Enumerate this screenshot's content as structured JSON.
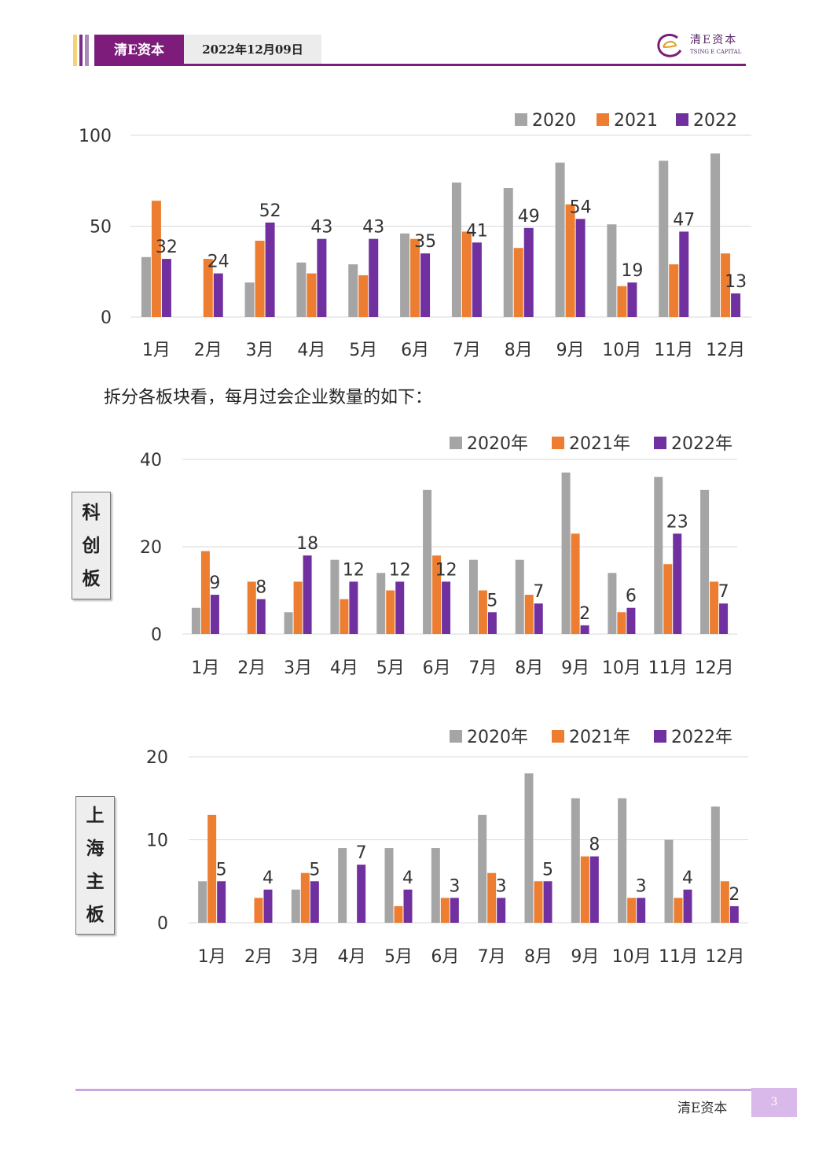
{
  "header": {
    "brand": "清E资本",
    "date": "2022年12月09日",
    "logo_cn": "清E资本",
    "logo_en": "TSING E CAPITAL"
  },
  "paragraph": "拆分各板块看，每月过会企业数量的如下：",
  "side_labels": {
    "star": [
      "科",
      "创",
      "板"
    ],
    "sh": [
      "上",
      "海",
      "主",
      "板"
    ]
  },
  "footer": {
    "brand": "清E资本",
    "page": "3"
  },
  "colors": {
    "s2020": "#a5a5a5",
    "s2021": "#ed7d31",
    "s2022": "#7030a0",
    "accent": "#7d1c7b"
  },
  "chart_data": [
    {
      "type": "bar",
      "categories": [
        "1月",
        "2月",
        "3月",
        "4月",
        "5月",
        "6月",
        "7月",
        "8月",
        "9月",
        "10月",
        "11月",
        "12月"
      ],
      "series": [
        {
          "name": "2020",
          "values": [
            33,
            0,
            19,
            30,
            29,
            46,
            74,
            71,
            85,
            51,
            86,
            90
          ]
        },
        {
          "name": "2021",
          "values": [
            64,
            32,
            42,
            24,
            23,
            43,
            47,
            38,
            62,
            17,
            29,
            35
          ]
        },
        {
          "name": "2022",
          "values": [
            32,
            24,
            52,
            43,
            43,
            35,
            41,
            49,
            54,
            19,
            47,
            13
          ]
        }
      ],
      "labeled_series": 2,
      "yticks": [
        0,
        50,
        100
      ],
      "ylim": [
        0,
        100
      ],
      "grid": true,
      "legend": "top-right"
    },
    {
      "type": "bar",
      "categories": [
        "1月",
        "2月",
        "3月",
        "4月",
        "5月",
        "6月",
        "7月",
        "8月",
        "9月",
        "10月",
        "11月",
        "12月"
      ],
      "series": [
        {
          "name": "2020年",
          "values": [
            6,
            0,
            5,
            17,
            14,
            33,
            17,
            17,
            37,
            14,
            36,
            33
          ]
        },
        {
          "name": "2021年",
          "values": [
            19,
            12,
            12,
            8,
            10,
            18,
            10,
            9,
            23,
            5,
            16,
            12
          ]
        },
        {
          "name": "2022年",
          "values": [
            9,
            8,
            18,
            12,
            12,
            12,
            5,
            7,
            2,
            6,
            23,
            7
          ]
        }
      ],
      "labeled_series": 2,
      "yticks": [
        0,
        20,
        40
      ],
      "ylim": [
        0,
        40
      ],
      "grid": true,
      "legend": "top-right"
    },
    {
      "type": "bar",
      "categories": [
        "1月",
        "2月",
        "3月",
        "4月",
        "5月",
        "6月",
        "7月",
        "8月",
        "9月",
        "10月",
        "11月",
        "12月"
      ],
      "series": [
        {
          "name": "2020年",
          "values": [
            5,
            0,
            4,
            9,
            9,
            9,
            13,
            18,
            15,
            15,
            10,
            14
          ]
        },
        {
          "name": "2021年",
          "values": [
            13,
            3,
            6,
            0,
            2,
            3,
            6,
            5,
            8,
            3,
            3,
            5
          ]
        },
        {
          "name": "2022年",
          "values": [
            5,
            4,
            5,
            7,
            4,
            3,
            3,
            5,
            8,
            3,
            4,
            2
          ]
        }
      ],
      "labeled_series": 2,
      "yticks": [
        0,
        10,
        20
      ],
      "ylim": [
        0,
        20
      ],
      "grid": true,
      "legend": "top-right"
    }
  ]
}
